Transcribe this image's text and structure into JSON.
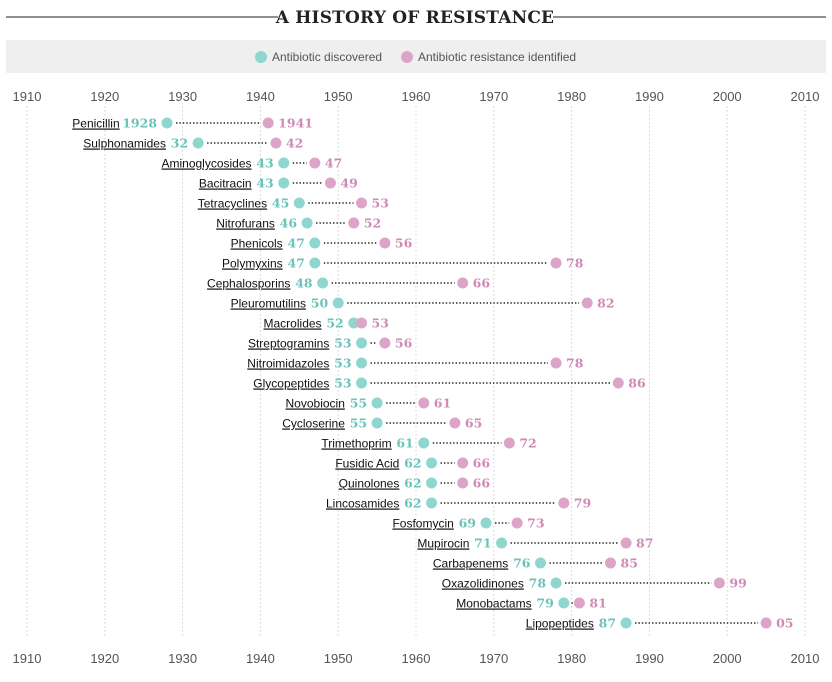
{
  "chart_data": {
    "type": "scatter",
    "title": "A HISTORY OF RESISTANCE",
    "legend": [
      {
        "key": "discovered",
        "label": "Antibiotic discovered",
        "color": "#8fd6cf"
      },
      {
        "key": "resistance",
        "label": "Antibiotic resistance identified",
        "color": "#dca4c6"
      }
    ],
    "xlim": [
      1910,
      2010
    ],
    "x_ticks": [
      1910,
      1920,
      1930,
      1940,
      1950,
      1960,
      1970,
      1980,
      1990,
      2000,
      2010
    ],
    "x_tick_labels": [
      "1910",
      "1920",
      "1930",
      "1940",
      "1950",
      "1960",
      "1970",
      "1980",
      "1990",
      "2000",
      "2010"
    ],
    "colors": {
      "discovered_text": "#6cc3bb",
      "resistance_text": "#cf8bb6",
      "grid": "#cfcfcf",
      "connector": "#222222",
      "legend_bg": "#efefef"
    },
    "series": [
      {
        "name": "Penicillin",
        "discovered": 1928,
        "resistance": 1941,
        "discovered_label": "1928",
        "resistance_label": "1941"
      },
      {
        "name": "Sulphonamides",
        "discovered": 1932,
        "resistance": 1942,
        "discovered_label": "32",
        "resistance_label": "42"
      },
      {
        "name": "Aminoglycosides",
        "discovered": 1943,
        "resistance": 1947,
        "discovered_label": "43",
        "resistance_label": "47"
      },
      {
        "name": "Bacitracin",
        "discovered": 1943,
        "resistance": 1949,
        "discovered_label": "43",
        "resistance_label": "49"
      },
      {
        "name": "Tetracyclines",
        "discovered": 1945,
        "resistance": 1953,
        "discovered_label": "45",
        "resistance_label": "53"
      },
      {
        "name": "Nitrofurans",
        "discovered": 1946,
        "resistance": 1952,
        "discovered_label": "46",
        "resistance_label": "52"
      },
      {
        "name": "Phenicols",
        "discovered": 1947,
        "resistance": 1956,
        "discovered_label": "47",
        "resistance_label": "56"
      },
      {
        "name": "Polymyxins",
        "discovered": 1947,
        "resistance": 1978,
        "discovered_label": "47",
        "resistance_label": "78"
      },
      {
        "name": "Cephalosporins",
        "discovered": 1948,
        "resistance": 1966,
        "discovered_label": "48",
        "resistance_label": "66"
      },
      {
        "name": "Pleuromutilins",
        "discovered": 1950,
        "resistance": 1982,
        "discovered_label": "50",
        "resistance_label": "82"
      },
      {
        "name": "Macrolides",
        "discovered": 1952,
        "resistance": 1953,
        "discovered_label": "52",
        "resistance_label": "53"
      },
      {
        "name": "Streptogramins",
        "discovered": 1953,
        "resistance": 1956,
        "discovered_label": "53",
        "resistance_label": "56"
      },
      {
        "name": "Nitroimidazoles",
        "discovered": 1953,
        "resistance": 1978,
        "discovered_label": "53",
        "resistance_label": "78"
      },
      {
        "name": "Glycopeptides",
        "discovered": 1953,
        "resistance": 1986,
        "discovered_label": "53",
        "resistance_label": "86"
      },
      {
        "name": "Novobiocin",
        "discovered": 1955,
        "resistance": 1961,
        "discovered_label": "55",
        "resistance_label": "61"
      },
      {
        "name": "Cycloserine",
        "discovered": 1955,
        "resistance": 1965,
        "discovered_label": "55",
        "resistance_label": "65"
      },
      {
        "name": "Trimethoprim",
        "discovered": 1961,
        "resistance": 1972,
        "discovered_label": "61",
        "resistance_label": "72"
      },
      {
        "name": "Fusidic Acid",
        "discovered": 1962,
        "resistance": 1966,
        "discovered_label": "62",
        "resistance_label": "66"
      },
      {
        "name": "Quinolones",
        "discovered": 1962,
        "resistance": 1966,
        "discovered_label": "62",
        "resistance_label": "66"
      },
      {
        "name": "Lincosamides",
        "discovered": 1962,
        "resistance": 1979,
        "discovered_label": "62",
        "resistance_label": "79"
      },
      {
        "name": "Fosfomycin",
        "discovered": 1969,
        "resistance": 1973,
        "discovered_label": "69",
        "resistance_label": "73"
      },
      {
        "name": "Mupirocin",
        "discovered": 1971,
        "resistance": 1987,
        "discovered_label": "71",
        "resistance_label": "87"
      },
      {
        "name": "Carbapenems",
        "discovered": 1976,
        "resistance": 1985,
        "discovered_label": "76",
        "resistance_label": "85"
      },
      {
        "name": "Oxazolidinones",
        "discovered": 1978,
        "resistance": 1999,
        "discovered_label": "78",
        "resistance_label": "99"
      },
      {
        "name": "Monobactams",
        "discovered": 1979,
        "resistance": 1981,
        "discovered_label": "79",
        "resistance_label": "81"
      },
      {
        "name": "Lipopeptides",
        "discovered": 1987,
        "resistance": 2005,
        "discovered_label": "87",
        "resistance_label": "05"
      }
    ]
  }
}
